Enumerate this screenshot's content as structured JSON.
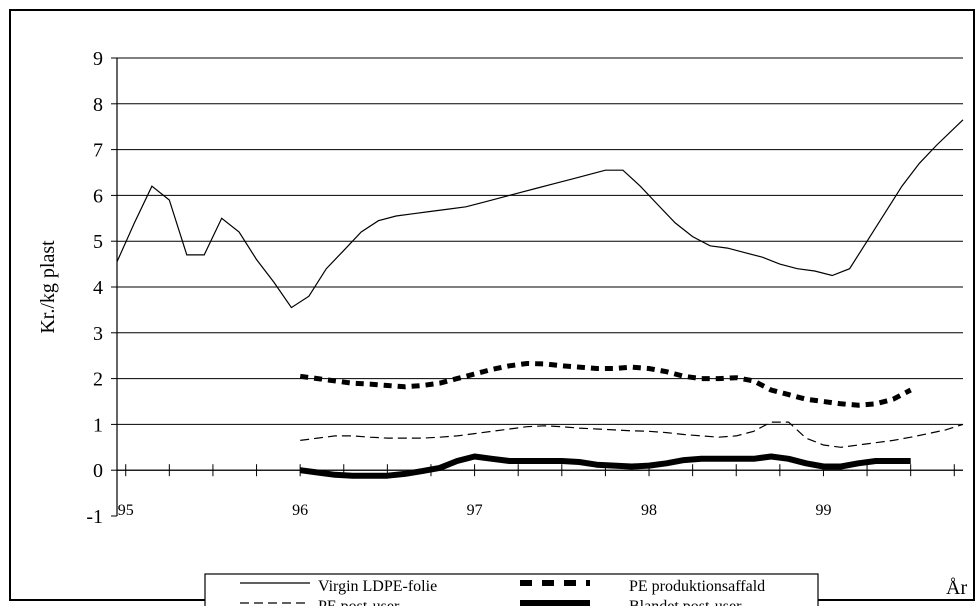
{
  "chart_data": {
    "type": "line",
    "title": "",
    "xlabel": "År",
    "ylabel": "Kr./kg plast",
    "ylim": [
      -1,
      9
    ],
    "yticks": [
      -1,
      0,
      1,
      2,
      3,
      4,
      5,
      6,
      7,
      8,
      9
    ],
    "xlim": [
      94.95,
      99.8
    ],
    "year_labels": [
      "95",
      "96",
      "97",
      "98",
      "99"
    ],
    "grid": true,
    "legend_position": "bottom",
    "series": [
      {
        "name": "Virgin LDPE-folie",
        "style": "solid-thin",
        "x": [
          94.95,
          95.05,
          95.15,
          95.25,
          95.35,
          95.45,
          95.55,
          95.65,
          95.75,
          95.85,
          95.95,
          96.05,
          96.15,
          96.25,
          96.35,
          96.45,
          96.55,
          96.65,
          96.75,
          96.85,
          96.95,
          97.05,
          97.15,
          97.25,
          97.35,
          97.45,
          97.55,
          97.65,
          97.75,
          97.85,
          97.95,
          98.05,
          98.15,
          98.25,
          98.35,
          98.45,
          98.55,
          98.65,
          98.75,
          98.85,
          98.95,
          99.05,
          99.15,
          99.25,
          99.35,
          99.45,
          99.55,
          99.65,
          99.8
        ],
        "y": [
          4.55,
          5.4,
          6.2,
          5.9,
          4.7,
          4.7,
          5.5,
          5.2,
          4.6,
          4.1,
          3.55,
          3.8,
          4.4,
          4.8,
          5.2,
          5.45,
          5.55,
          5.6,
          5.65,
          5.7,
          5.75,
          5.85,
          5.95,
          6.05,
          6.15,
          6.25,
          6.35,
          6.45,
          6.55,
          6.55,
          6.2,
          5.8,
          5.4,
          5.1,
          4.9,
          4.85,
          4.75,
          4.65,
          4.5,
          4.4,
          4.35,
          4.25,
          4.4,
          5.0,
          5.6,
          6.2,
          6.7,
          7.1,
          7.65
        ]
      },
      {
        "name": "PE post-user",
        "style": "dashed",
        "x": [
          96.0,
          96.1,
          96.2,
          96.3,
          96.4,
          96.5,
          96.6,
          96.7,
          96.8,
          96.9,
          97.0,
          97.1,
          97.2,
          97.3,
          97.4,
          97.5,
          97.6,
          97.7,
          97.8,
          97.9,
          98.0,
          98.1,
          98.2,
          98.3,
          98.4,
          98.5,
          98.6,
          98.7,
          98.8,
          98.9,
          99.0,
          99.1,
          99.2,
          99.3,
          99.4,
          99.5,
          99.6,
          99.7,
          99.8
        ],
        "y": [
          0.65,
          0.7,
          0.75,
          0.75,
          0.72,
          0.7,
          0.7,
          0.7,
          0.72,
          0.75,
          0.8,
          0.85,
          0.9,
          0.95,
          0.97,
          0.95,
          0.92,
          0.9,
          0.88,
          0.86,
          0.85,
          0.82,
          0.78,
          0.75,
          0.72,
          0.75,
          0.85,
          1.05,
          1.05,
          0.7,
          0.55,
          0.5,
          0.55,
          0.6,
          0.65,
          0.72,
          0.8,
          0.88,
          1.0
        ]
      },
      {
        "name": "PE produktionsaffald",
        "style": "dotted-thick",
        "x": [
          96.0,
          96.1,
          96.2,
          96.3,
          96.4,
          96.5,
          96.6,
          96.7,
          96.8,
          96.9,
          97.0,
          97.1,
          97.2,
          97.3,
          97.4,
          97.5,
          97.6,
          97.7,
          97.8,
          97.9,
          98.0,
          98.1,
          98.2,
          98.3,
          98.4,
          98.5,
          98.6,
          98.7,
          98.8,
          98.9,
          99.0,
          99.1,
          99.2,
          99.3,
          99.4,
          99.5
        ],
        "y": [
          2.05,
          2.0,
          1.95,
          1.9,
          1.88,
          1.85,
          1.82,
          1.85,
          1.9,
          2.0,
          2.1,
          2.2,
          2.28,
          2.33,
          2.32,
          2.28,
          2.25,
          2.22,
          2.22,
          2.25,
          2.22,
          2.15,
          2.05,
          2.0,
          2.0,
          2.02,
          1.95,
          1.75,
          1.65,
          1.55,
          1.5,
          1.45,
          1.42,
          1.45,
          1.55,
          1.75
        ]
      },
      {
        "name": "Blandet post-user",
        "style": "solid-thick",
        "x": [
          96.0,
          96.1,
          96.2,
          96.3,
          96.4,
          96.5,
          96.6,
          96.7,
          96.8,
          96.9,
          97.0,
          97.1,
          97.2,
          97.3,
          97.4,
          97.5,
          97.6,
          97.7,
          97.8,
          97.9,
          98.0,
          98.1,
          98.2,
          98.3,
          98.4,
          98.5,
          98.6,
          98.7,
          98.8,
          98.9,
          99.0,
          99.1,
          99.2,
          99.3,
          99.4,
          99.5
        ],
        "y": [
          0.0,
          -0.05,
          -0.1,
          -0.12,
          -0.12,
          -0.12,
          -0.08,
          -0.02,
          0.05,
          0.2,
          0.3,
          0.25,
          0.2,
          0.2,
          0.2,
          0.2,
          0.18,
          0.12,
          0.1,
          0.08,
          0.1,
          0.15,
          0.22,
          0.25,
          0.25,
          0.25,
          0.25,
          0.3,
          0.25,
          0.15,
          0.08,
          0.08,
          0.15,
          0.2,
          0.2,
          0.2
        ]
      }
    ]
  }
}
